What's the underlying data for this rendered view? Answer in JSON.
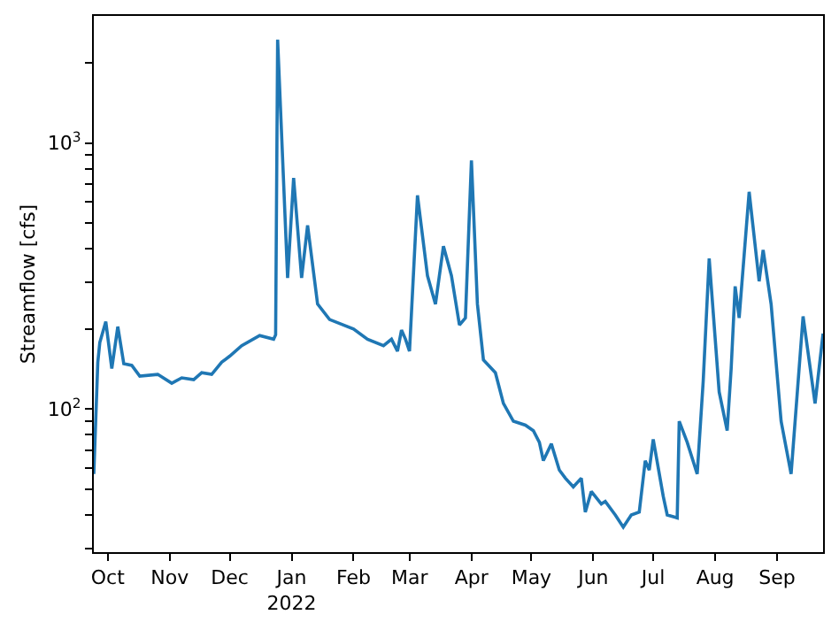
{
  "chart_data": {
    "type": "line",
    "ylabel": "Streamflow [cfs]",
    "log": "y",
    "marker": "none",
    "line_style": "solid",
    "x": [
      "2021-09-24",
      "2021-09-26",
      "2021-09-27",
      "2021-09-30",
      "2021-10-03",
      "2021-10-06",
      "2021-10-09",
      "2021-10-13",
      "2021-10-17",
      "2021-10-26",
      "2021-11-02",
      "2021-11-07",
      "2021-11-13",
      "2021-11-17",
      "2021-11-22",
      "2021-11-27",
      "2021-12-01",
      "2021-12-07",
      "2021-12-16",
      "2021-12-23",
      "2021-12-24",
      "2021-12-25",
      "2021-12-30",
      "2022-01-02",
      "2022-01-06",
      "2022-01-09",
      "2022-01-14",
      "2022-01-20",
      "2022-02-01",
      "2022-02-08",
      "2022-02-16",
      "2022-02-20",
      "2022-02-23",
      "2022-02-25",
      "2022-02-27",
      "2022-03-01",
      "2022-03-05",
      "2022-03-10",
      "2022-03-14",
      "2022-03-18",
      "2022-03-22",
      "2022-03-26",
      "2022-03-29",
      "2022-04-01",
      "2022-04-04",
      "2022-04-07",
      "2022-04-13",
      "2022-04-17",
      "2022-04-22",
      "2022-04-28",
      "2022-05-02",
      "2022-05-05",
      "2022-05-07",
      "2022-05-11",
      "2022-05-15",
      "2022-05-18",
      "2022-05-22",
      "2022-05-26",
      "2022-05-28",
      "2022-05-31",
      "2022-06-05",
      "2022-06-07",
      "2022-06-12",
      "2022-06-16",
      "2022-06-20",
      "2022-06-24",
      "2022-06-27",
      "2022-06-29",
      "2022-07-01",
      "2022-07-06",
      "2022-07-08",
      "2022-07-13",
      "2022-07-14",
      "2022-07-18",
      "2022-07-23",
      "2022-07-26",
      "2022-07-29",
      "2022-08-03",
      "2022-08-07",
      "2022-08-09",
      "2022-08-11",
      "2022-08-13",
      "2022-08-18",
      "2022-08-23",
      "2022-08-25",
      "2022-08-29",
      "2022-09-03",
      "2022-09-08",
      "2022-09-14",
      "2022-09-20",
      "2022-09-24"
    ],
    "series": [
      {
        "color": "#1f77b4",
        "values": [
          57,
          150,
          178,
          213,
          142,
          204,
          148,
          146,
          133,
          135,
          125,
          131,
          129,
          137,
          135,
          150,
          158,
          173,
          189,
          183,
          190,
          2445,
          311,
          738,
          311,
          490,
          248,
          217,
          200,
          183,
          173,
          183,
          165,
          198,
          183,
          165,
          635,
          317,
          248,
          409,
          317,
          207,
          220,
          860,
          248,
          153,
          137,
          105,
          90,
          87,
          83,
          75,
          64,
          74,
          59,
          55,
          51,
          55,
          41,
          49,
          44,
          45,
          40,
          36,
          40,
          41,
          64,
          59,
          77,
          47,
          40,
          39,
          90,
          75,
          57,
          127,
          368,
          116,
          83,
          142,
          289,
          220,
          655,
          302,
          396,
          248,
          90,
          57,
          223,
          105,
          192
        ]
      }
    ],
    "xlim": [
      "2021-09-24",
      "2022-09-24"
    ],
    "xticks": [
      {
        "value": "2021-10-01",
        "label": "Oct"
      },
      {
        "value": "2021-11-01",
        "label": "Nov"
      },
      {
        "value": "2021-12-01",
        "label": "Dec"
      },
      {
        "value": "2022-01-01",
        "label": "Jan\n2022"
      },
      {
        "value": "2022-02-01",
        "label": "Feb"
      },
      {
        "value": "2022-03-01",
        "label": "Mar"
      },
      {
        "value": "2022-04-01",
        "label": "Apr"
      },
      {
        "value": "2022-05-01",
        "label": "May"
      },
      {
        "value": "2022-06-01",
        "label": "Jun"
      },
      {
        "value": "2022-07-01",
        "label": "Jul"
      },
      {
        "value": "2022-08-01",
        "label": "Aug"
      },
      {
        "value": "2022-09-01",
        "label": "Sep"
      }
    ],
    "ylim": [
      29,
      3000
    ],
    "yticks": [
      {
        "value": 30,
        "label": null
      },
      {
        "value": 40,
        "label": null
      },
      {
        "value": 50,
        "label": null
      },
      {
        "value": 60,
        "label": null
      },
      {
        "value": 70,
        "label": null
      },
      {
        "value": 80,
        "label": null
      },
      {
        "value": 90,
        "label": null
      },
      {
        "value": 100,
        "label": "10$^{2}$"
      },
      {
        "value": 200,
        "label": null
      },
      {
        "value": 300,
        "label": null
      },
      {
        "value": 400,
        "label": null
      },
      {
        "value": 500,
        "label": null
      },
      {
        "value": 600,
        "label": null
      },
      {
        "value": 700,
        "label": null
      },
      {
        "value": 800,
        "label": null
      },
      {
        "value": 900,
        "label": null
      },
      {
        "value": 1000,
        "label": "10$^{3}$"
      },
      {
        "value": 2000,
        "label": null
      }
    ]
  }
}
